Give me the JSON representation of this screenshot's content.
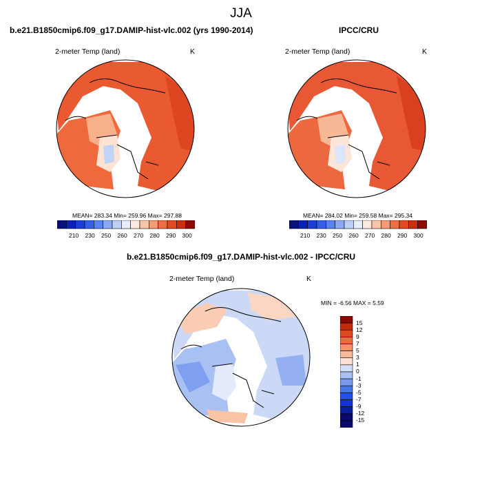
{
  "figure": {
    "title": "JJA"
  },
  "panels": [
    {
      "case_title": "b.e21.B1850cmip6.f09_g17.DAMIP-hist-vlc.002 (yrs 1990-2014)",
      "variable": "2-meter Temp (land)",
      "units": "K",
      "stats": {
        "mean": "283.34",
        "min": "259.96",
        "max": "297.88"
      },
      "stats_text": "MEAN= 283.34  Min= 259.96  Max= 297.88"
    },
    {
      "case_title": "IPCC/CRU",
      "variable": "2-meter Temp (land)",
      "units": "K",
      "stats": {
        "mean": "284.02",
        "min": "259.58",
        "max": "295.34"
      },
      "stats_text": "MEAN= 284.02  Min= 259.58  Max= 295.34"
    },
    {
      "case_title": "b.e21.B1850cmip6.f09_g17.DAMIP-hist-vlc.002 - IPCC/CRU",
      "variable": "2-meter Temp (land)",
      "units": "K",
      "stats": {
        "min": "-6.56",
        "max": "5.59"
      },
      "stats_text": "MIN =  -6.56 MAX =   5.59"
    }
  ],
  "colorbar_abs": {
    "colors": [
      "#08107c",
      "#0a22b4",
      "#1a3fd8",
      "#3460e8",
      "#5a84f0",
      "#8aaaf4",
      "#bcd0f8",
      "#e6eefc",
      "#fdeadf",
      "#fac4a8",
      "#f59a72",
      "#ee6e44",
      "#e24a22",
      "#c8300e",
      "#8e0a04"
    ],
    "tick_labels": [
      "210",
      "230",
      "250",
      "260",
      "270",
      "280",
      "290",
      "300"
    ]
  },
  "colorbar_diff": {
    "colors": [
      "#0a0a6c",
      "#0a1ea0",
      "#1434cc",
      "#2450e4",
      "#4a74ec",
      "#7a98f0",
      "#a8bef4",
      "#d4e0f8",
      "#fde0d2",
      "#fab898",
      "#f49268",
      "#ec6c40",
      "#de4a20",
      "#c22c0c",
      "#8a0a02"
    ],
    "tick_labels": [
      "15",
      "12",
      "9",
      "7",
      "5",
      "3",
      "1",
      "0",
      "-1",
      "-3",
      "-5",
      "-7",
      "-9",
      "-12",
      "-15"
    ]
  }
}
